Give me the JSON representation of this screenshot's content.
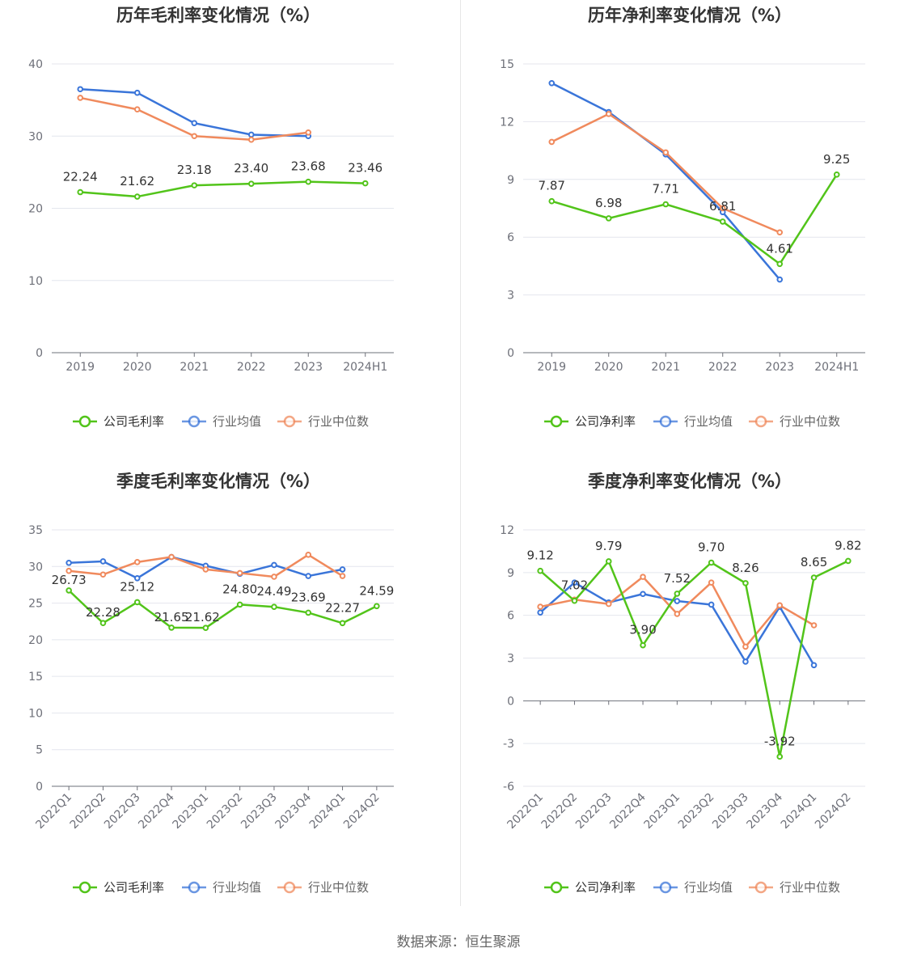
{
  "source_text": "数据来源：恒生聚源",
  "chart_data": [
    {
      "type": "line",
      "title": "历年毛利率变化情况（%）",
      "categories": [
        "2019",
        "2020",
        "2021",
        "2022",
        "2023",
        "2024H1"
      ],
      "ylim": [
        0,
        40
      ],
      "yticks": [
        "0",
        "10",
        "20",
        "30",
        "40"
      ],
      "grid": true,
      "legend_position": "bottom",
      "series": [
        {
          "name": "公司毛利率",
          "color": "#52c41a",
          "values": [
            22.24,
            21.62,
            23.18,
            23.4,
            23.68,
            23.46
          ],
          "labels": [
            "22.24",
            "21.62",
            "23.18",
            "23.40",
            "23.68",
            "23.46"
          ]
        },
        {
          "name": "行业均值",
          "color": "#3a75d9",
          "values": [
            36.5,
            36.0,
            31.8,
            30.2,
            30.0,
            null
          ]
        },
        {
          "name": "行业中位数",
          "color": "#f08a5d",
          "values": [
            35.3,
            33.7,
            30.0,
            29.5,
            30.5,
            null
          ]
        }
      ]
    },
    {
      "type": "line",
      "title": "历年净利率变化情况（%）",
      "categories": [
        "2019",
        "2020",
        "2021",
        "2022",
        "2023",
        "2024H1"
      ],
      "ylim": [
        0,
        15
      ],
      "yticks": [
        "0",
        "3",
        "6",
        "9",
        "12",
        "15"
      ],
      "grid": true,
      "legend_position": "bottom",
      "series": [
        {
          "name": "公司净利率",
          "color": "#52c41a",
          "values": [
            7.87,
            6.98,
            7.71,
            6.81,
            4.61,
            9.25
          ],
          "labels": [
            "7.87",
            "6.98",
            "7.71",
            "6.81",
            "4.61",
            "9.25"
          ]
        },
        {
          "name": "行业均值",
          "color": "#3a75d9",
          "values": [
            14.0,
            12.5,
            10.3,
            7.3,
            3.8,
            null
          ]
        },
        {
          "name": "行业中位数",
          "color": "#f08a5d",
          "values": [
            10.95,
            12.4,
            10.4,
            7.5,
            6.25,
            null
          ]
        }
      ]
    },
    {
      "type": "line",
      "title": "季度毛利率变化情况（%）",
      "categories": [
        "2022Q1",
        "2022Q2",
        "2022Q3",
        "2022Q4",
        "2023Q1",
        "2023Q2",
        "2023Q3",
        "2023Q4",
        "2024Q1",
        "2024Q2"
      ],
      "ylim": [
        0,
        35
      ],
      "yticks": [
        "0",
        "5",
        "10",
        "15",
        "20",
        "25",
        "30",
        "35"
      ],
      "grid": true,
      "legend_position": "bottom",
      "series": [
        {
          "name": "公司毛利率",
          "color": "#52c41a",
          "values": [
            26.73,
            22.28,
            25.12,
            21.65,
            21.62,
            24.8,
            24.49,
            23.69,
            22.27,
            24.59
          ],
          "labels": [
            "26.73",
            "22.28",
            "25.12",
            "21.65",
            "21.62",
            "24.80",
            "24.49",
            "23.69",
            "22.27",
            "24.59"
          ]
        },
        {
          "name": "行业均值",
          "color": "#3a75d9",
          "values": [
            30.5,
            30.7,
            28.4,
            31.3,
            30.1,
            29.0,
            30.2,
            28.7,
            29.6,
            null
          ]
        },
        {
          "name": "行业中位数",
          "color": "#f08a5d",
          "values": [
            29.4,
            28.9,
            30.6,
            31.3,
            29.6,
            29.1,
            28.6,
            31.6,
            28.7,
            null
          ]
        }
      ]
    },
    {
      "type": "line",
      "title": "季度净利率变化情况（%）",
      "categories": [
        "2022Q1",
        "2022Q2",
        "2022Q3",
        "2022Q4",
        "2023Q1",
        "2023Q2",
        "2023Q3",
        "2023Q4",
        "2024Q1",
        "2024Q2"
      ],
      "ylim": [
        -6,
        12
      ],
      "yticks": [
        "-6",
        "-3",
        "0",
        "3",
        "6",
        "9",
        "12"
      ],
      "grid": true,
      "legend_position": "bottom",
      "series": [
        {
          "name": "公司净利率",
          "color": "#52c41a",
          "values": [
            9.12,
            7.02,
            9.79,
            3.9,
            7.52,
            9.7,
            8.26,
            -3.92,
            8.65,
            9.82
          ],
          "labels": [
            "9.12",
            "7.02",
            "9.79",
            "3.90",
            "7.52",
            "9.70",
            "8.26",
            "-3.92",
            "8.65",
            "9.82"
          ]
        },
        {
          "name": "行业均值",
          "color": "#3a75d9",
          "values": [
            6.2,
            8.3,
            6.9,
            7.5,
            7.0,
            6.75,
            2.75,
            6.6,
            2.5,
            null
          ]
        },
        {
          "name": "行业中位数",
          "color": "#f08a5d",
          "values": [
            6.6,
            7.1,
            6.8,
            8.7,
            6.1,
            8.3,
            3.8,
            6.7,
            5.3,
            null
          ]
        }
      ]
    }
  ]
}
